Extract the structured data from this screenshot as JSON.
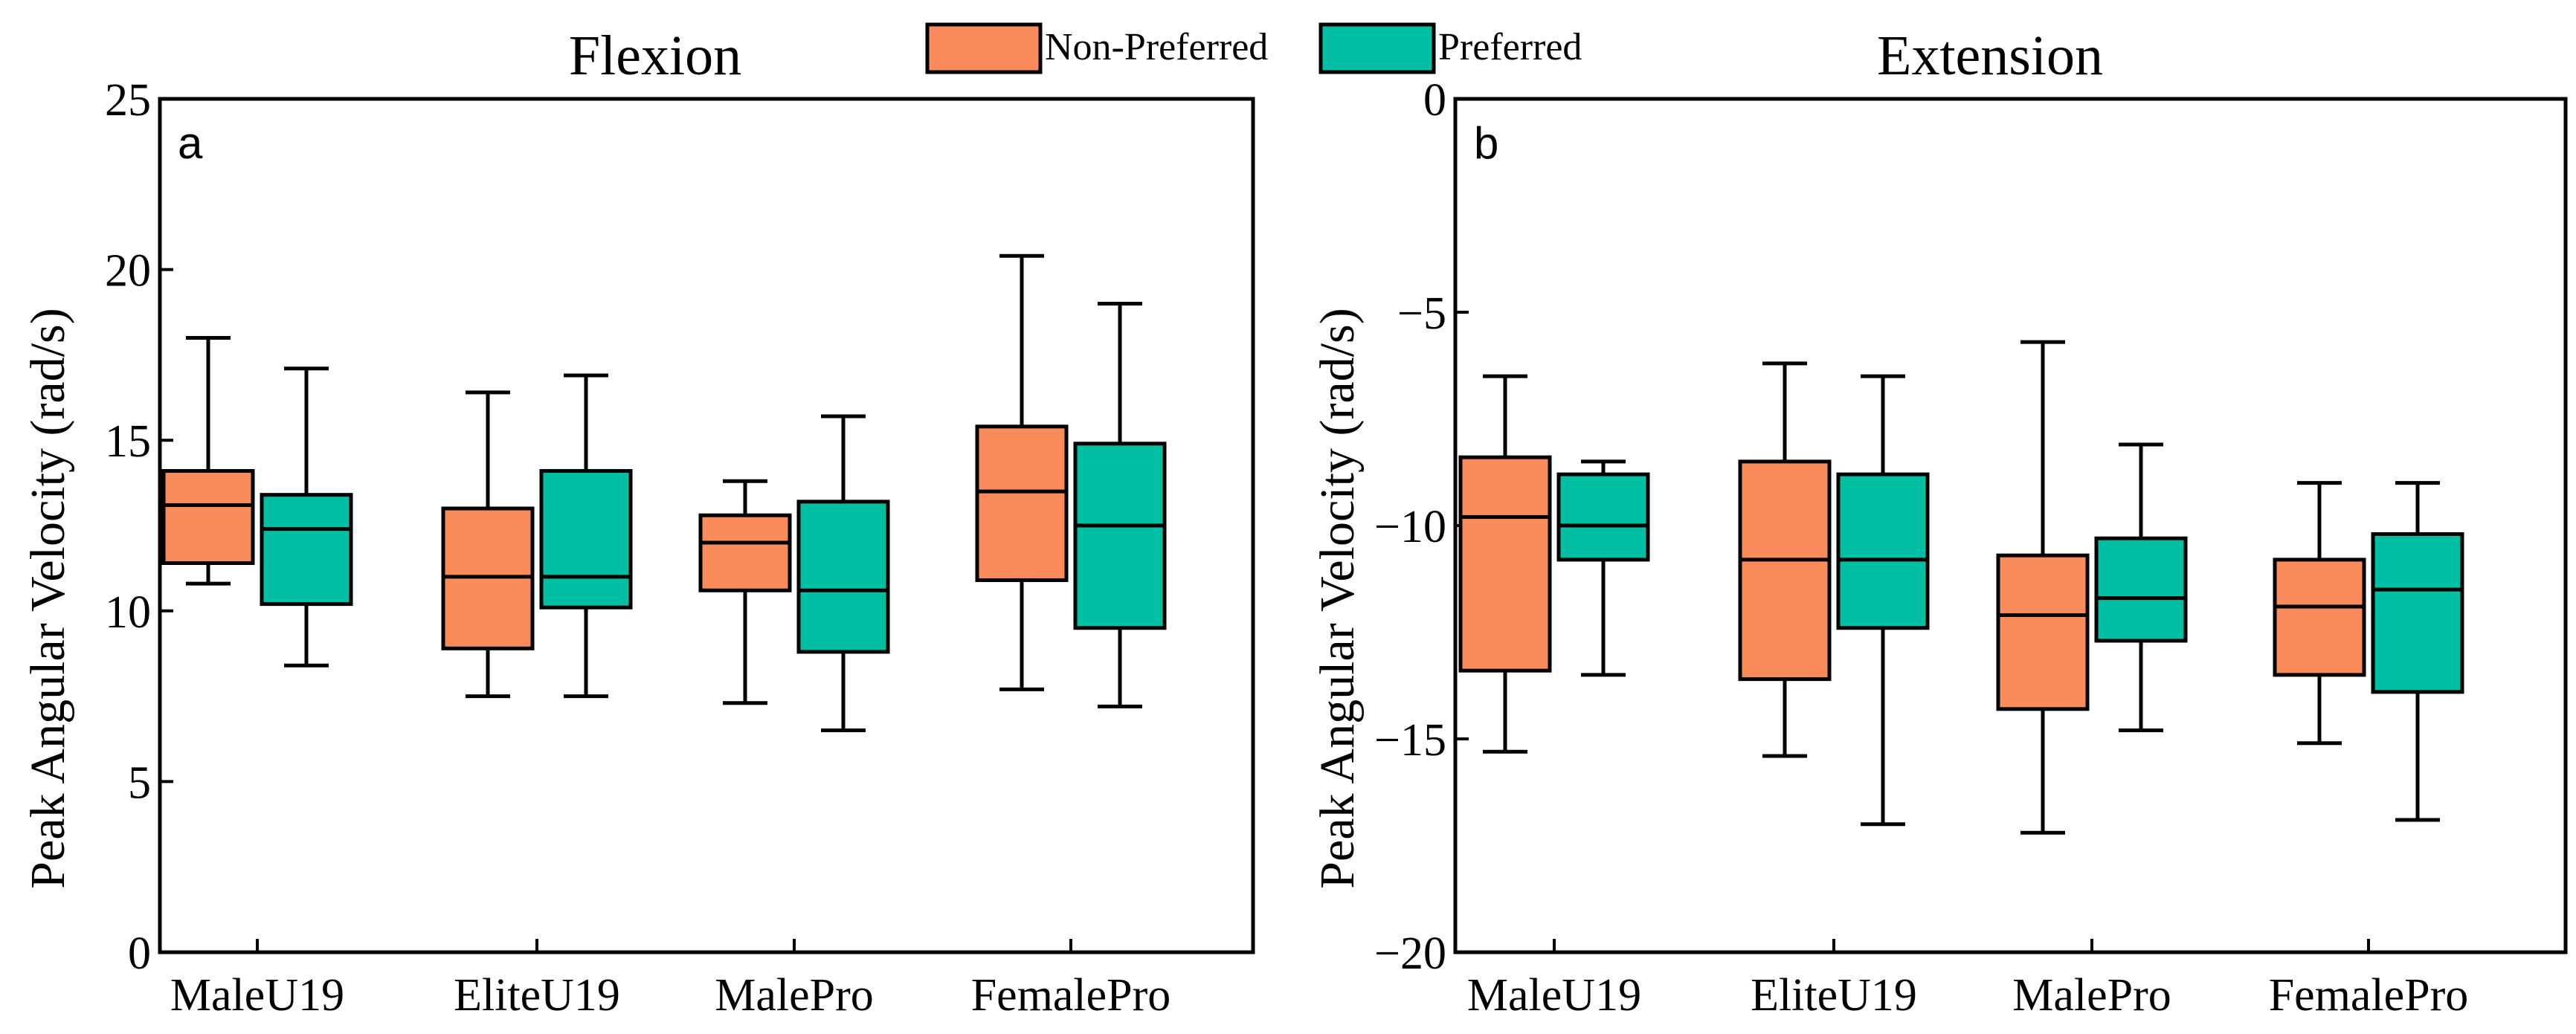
{
  "legend": {
    "entries": [
      {
        "name": "Non-Preferred",
        "color": "#fa8c5c"
      },
      {
        "name": "Preferred",
        "color": "#00bfa3"
      }
    ]
  },
  "chart_data": [
    {
      "type": "box",
      "panel_label": "a",
      "title": "Flexion",
      "xlabel": "",
      "ylabel": "Peak Angular Velocity (rad/s)",
      "ylim": [
        0,
        25
      ],
      "yticks": [
        0,
        5,
        10,
        15,
        20,
        25
      ],
      "ytick_labels": [
        "0",
        "5",
        "10",
        "15",
        "20",
        "25"
      ],
      "categories": [
        "MaleU19",
        "EliteU19",
        "MalePro",
        "FemalePro"
      ],
      "series": [
        {
          "name": "Non-Preferred",
          "color": "#fa8c5c",
          "boxes": [
            {
              "min": 10.8,
              "q1": 11.4,
              "median": 13.1,
              "q3": 14.1,
              "max": 18.0
            },
            {
              "min": 7.5,
              "q1": 8.9,
              "median": 11.0,
              "q3": 13.0,
              "max": 16.4
            },
            {
              "min": 7.3,
              "q1": 10.6,
              "median": 12.0,
              "q3": 12.8,
              "max": 13.8
            },
            {
              "min": 7.7,
              "q1": 10.9,
              "median": 13.5,
              "q3": 15.4,
              "max": 20.4
            }
          ]
        },
        {
          "name": "Preferred",
          "color": "#00bfa3",
          "boxes": [
            {
              "min": 8.4,
              "q1": 10.2,
              "median": 12.4,
              "q3": 13.4,
              "max": 17.1
            },
            {
              "min": 7.5,
              "q1": 10.1,
              "median": 11.0,
              "q3": 14.1,
              "max": 16.9
            },
            {
              "min": 6.5,
              "q1": 8.8,
              "median": 10.6,
              "q3": 13.2,
              "max": 15.7
            },
            {
              "min": 7.2,
              "q1": 9.5,
              "median": 12.5,
              "q3": 14.9,
              "max": 19.0
            }
          ]
        }
      ]
    },
    {
      "type": "box",
      "panel_label": "b",
      "title": "Extension",
      "xlabel": "",
      "ylabel": "Peak Angular Velocity (rad/s)",
      "ylim": [
        -20,
        0
      ],
      "yticks": [
        -20,
        -15,
        -10,
        -5,
        0
      ],
      "ytick_labels": [
        "−20",
        "−15",
        "−10",
        "−5",
        "0"
      ],
      "categories": [
        "MaleU19",
        "EliteU19",
        "MalePro",
        "FemalePro"
      ],
      "series": [
        {
          "name": "Non-Preferred",
          "color": "#fa8c5c",
          "boxes": [
            {
              "min": -15.3,
              "q1": -13.4,
              "median": -9.8,
              "q3": -8.4,
              "max": -6.5
            },
            {
              "min": -15.4,
              "q1": -13.6,
              "median": -10.8,
              "q3": -8.5,
              "max": -6.2
            },
            {
              "min": -17.2,
              "q1": -14.3,
              "median": -12.1,
              "q3": -10.7,
              "max": -5.7
            },
            {
              "min": -15.1,
              "q1": -13.5,
              "median": -11.9,
              "q3": -10.8,
              "max": -9.0
            }
          ]
        },
        {
          "name": "Preferred",
          "color": "#00bfa3",
          "boxes": [
            {
              "min": -13.5,
              "q1": -10.8,
              "median": -10.0,
              "q3": -8.8,
              "max": -8.5
            },
            {
              "min": -17.0,
              "q1": -12.4,
              "median": -10.8,
              "q3": -8.8,
              "max": -6.5
            },
            {
              "min": -14.8,
              "q1": -12.7,
              "median": -11.7,
              "q3": -10.3,
              "max": -8.1
            },
            {
              "min": -16.9,
              "q1": -13.9,
              "median": -11.5,
              "q3": -10.2,
              "max": -9.0
            }
          ]
        }
      ]
    }
  ]
}
